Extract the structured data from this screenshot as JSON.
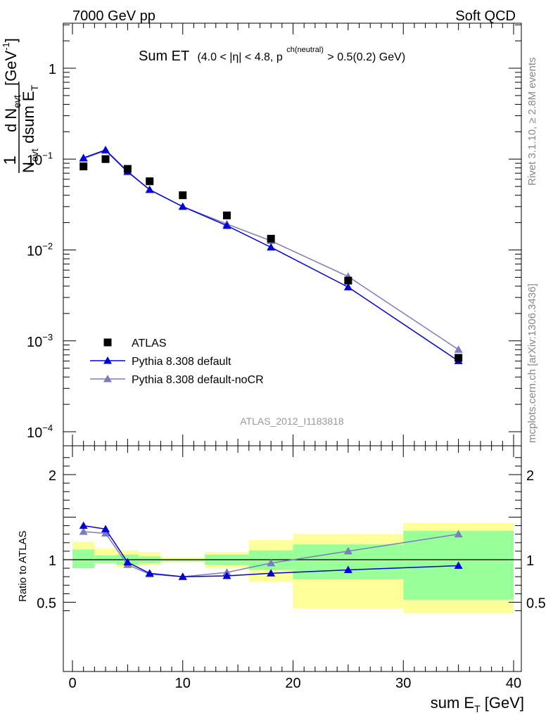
{
  "header": {
    "left": "7000 GeV pp",
    "right": "Soft QCD"
  },
  "plot_title": {
    "main": "Sum ET",
    "cut_a": "(4.0 < |η| < 4.8, p",
    "cut_sup": "ch(neutral)",
    "cut_b": " > 0.5(0.2) GeV)"
  },
  "side_text": {
    "rivet": "Rivet 3.1.10, ≥ 2.8M events",
    "mcplots": "mcplots.cern.ch [arXiv:1306.3436]"
  },
  "watermark": "ATLAS_2012_I1183818",
  "main_ylabel": {
    "one": "1",
    "nevt": "N",
    "nevt_sub": "evt",
    "dN": "d N",
    "dN_sub": "evt",
    "dsum": "dsum E",
    "dsum_sub": "T",
    "unit": "[GeV",
    "unit_sup": "-1",
    "unit_close": "]"
  },
  "ratio_ylabel": "Ratio to ATLAS",
  "xlabel": {
    "main": "sum E",
    "sub": "T",
    "unit": " [GeV]"
  },
  "legend": [
    {
      "label": "ATLAS",
      "color": "#000000",
      "marker": "square"
    },
    {
      "label": "Pythia 8.308 default",
      "color": "#0000dd",
      "marker": "triangle"
    },
    {
      "label": "Pythia 8.308 default-noCR",
      "color": "#7b7bbf",
      "marker": "triangle"
    }
  ],
  "colors": {
    "atlas": "#000000",
    "default": "#0000dd",
    "nocr": "#7b7bbf",
    "band_green": "#99ff99",
    "band_yellow": "#ffff99"
  },
  "main_yticks": [
    {
      "value": 1,
      "label": "1",
      "sup": ""
    },
    {
      "value": 0.1,
      "label": "10",
      "sup": "−1"
    },
    {
      "value": 0.01,
      "label": "10",
      "sup": "−2"
    },
    {
      "value": 0.001,
      "label": "10",
      "sup": "−3"
    },
    {
      "value": 0.0001,
      "label": "10",
      "sup": "−4"
    }
  ],
  "ratio_yticks": [
    {
      "value": 2,
      "label": "2"
    },
    {
      "value": 1,
      "label": "1"
    },
    {
      "value": 0.5,
      "label": "0.5"
    }
  ],
  "xticks": [
    {
      "value": 0,
      "label": "0"
    },
    {
      "value": 10,
      "label": "10"
    },
    {
      "value": 20,
      "label": "20"
    },
    {
      "value": 30,
      "label": "30"
    },
    {
      "value": 40,
      "label": "40"
    }
  ],
  "chart_data": {
    "type": "scatter",
    "title": "Sum ET",
    "xlabel": "sum E_T [GeV]",
    "ylabel": "1/N_evt dN_evt/dsum E_T [GeV^-1]",
    "xlim": [
      -1,
      40
    ],
    "ylim": [
      0.0001,
      3
    ],
    "yscale": "log",
    "ratio_ylim": [
      0.35,
      2.2
    ],
    "x": [
      1,
      3,
      5,
      7,
      10,
      14,
      18,
      25,
      35
    ],
    "x_bins": [
      [
        0,
        2
      ],
      [
        2,
        4
      ],
      [
        4,
        6
      ],
      [
        6,
        8
      ],
      [
        8,
        12
      ],
      [
        12,
        16
      ],
      [
        16,
        20
      ],
      [
        20,
        30
      ],
      [
        30,
        40
      ]
    ],
    "series": [
      {
        "name": "ATLAS",
        "values": [
          0.083,
          0.1,
          0.078,
          0.057,
          0.04,
          0.024,
          0.0133,
          0.0046,
          0.00065
        ]
      },
      {
        "name": "Pythia 8.308 default",
        "values": [
          0.103,
          0.126,
          0.073,
          0.046,
          0.03,
          0.0185,
          0.0107,
          0.0039,
          0.0006
        ]
      },
      {
        "name": "Pythia 8.308 default-noCR",
        "values": [
          0.101,
          0.124,
          0.072,
          0.046,
          0.03,
          0.0193,
          0.0126,
          0.0051,
          0.0008
        ]
      }
    ],
    "ratio": {
      "ylabel": "Ratio to ATLAS",
      "series": [
        {
          "name": "Pythia 8.308 default",
          "values": [
            1.4,
            1.36,
            0.97,
            0.84,
            0.8,
            0.81,
            0.84,
            0.88,
            0.93
          ]
        },
        {
          "name": "Pythia 8.308 default-noCR",
          "values": [
            1.33,
            1.31,
            0.94,
            0.83,
            0.8,
            0.85,
            0.96,
            1.1,
            1.3
          ]
        }
      ],
      "band_stat": [
        [
          0.9,
          1.12
        ],
        [
          0.96,
          1.05
        ],
        [
          0.94,
          1.06
        ],
        [
          0.96,
          1.04
        ],
        [
          0.98,
          1.01
        ],
        [
          0.94,
          1.06
        ],
        [
          0.88,
          1.11
        ],
        [
          0.77,
          1.18
        ],
        [
          0.53,
          1.34
        ]
      ],
      "band_total": [
        [
          0.94,
          1.21
        ],
        [
          0.96,
          1.13
        ],
        [
          0.91,
          1.11
        ],
        [
          0.94,
          1.09
        ],
        [
          0.97,
          1.03
        ],
        [
          0.9,
          1.09
        ],
        [
          0.74,
          1.23
        ],
        [
          0.43,
          1.3
        ],
        [
          0.37,
          1.43
        ]
      ]
    }
  }
}
